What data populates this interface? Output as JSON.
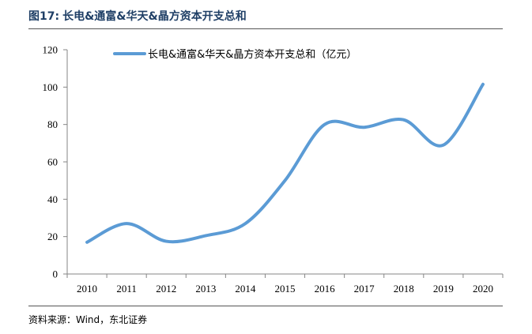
{
  "figure": {
    "number": "图17:",
    "title": "长电&通富&华天&晶方资本开支总和",
    "source": "资料来源：Wind，东北证券"
  },
  "chart_data": {
    "type": "line",
    "x": [
      "2010",
      "2011",
      "2012",
      "2013",
      "2014",
      "2015",
      "2016",
      "2017",
      "2018",
      "2019",
      "2020"
    ],
    "series": [
      {
        "name": "长电&通富&华天&晶方资本开支总和（亿元）",
        "values": [
          17,
          27,
          17.5,
          20.5,
          27,
          50,
          80,
          78.5,
          82.5,
          69,
          101.5
        ],
        "color": "#5b9bd5"
      }
    ],
    "ylim": [
      0,
      120
    ],
    "yticks": [
      "0",
      "20",
      "40",
      "60",
      "80",
      "100",
      "120"
    ],
    "grid": false,
    "legend_position": "top-center",
    "smooth": true
  }
}
